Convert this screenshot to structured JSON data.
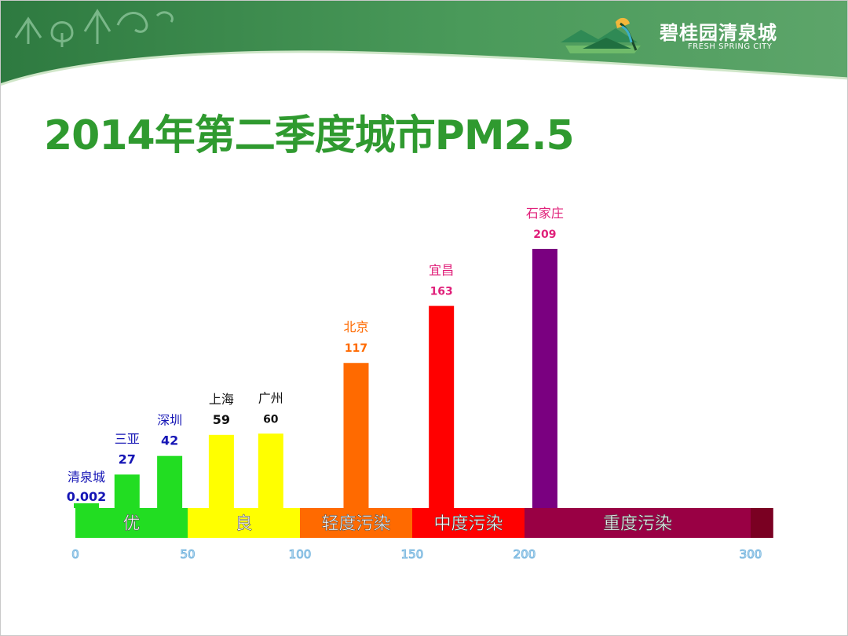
{
  "header": {
    "brand_name": "碧桂园清泉城",
    "brand_subtitle": "FRESH SPRING CITY"
  },
  "title": "2014年第二季度城市PM2.5",
  "colors": {
    "header_green": "#3f8a4e",
    "title_green": "#2f9a2f",
    "axis_tick_color": "#7ab8e0"
  },
  "chart_data": {
    "type": "bar",
    "categories": [
      "清泉城",
      "三亚",
      "深圳",
      "上海",
      "广州",
      "北京",
      "宜昌",
      "石家庄"
    ],
    "values": [
      0.002,
      27,
      42,
      59,
      60,
      117,
      163,
      209
    ],
    "value_labels": [
      "0.002",
      "27",
      "42",
      "59",
      "60",
      "117",
      "163",
      "209"
    ],
    "bar_colors": [
      "#22dd22",
      "#22dd22",
      "#22dd22",
      "#ffff00",
      "#ffff00",
      "#ff6a00",
      "#ff0000",
      "#7a0080"
    ],
    "label_colors": [
      "#1515b5",
      "#1515b5",
      "#1515b5",
      "#111111",
      "#111111",
      "#ff6a00",
      "#e0207a",
      "#e0207a"
    ],
    "x_positions": [
      0.002,
      23,
      42,
      65,
      87,
      125,
      163,
      209
    ],
    "xlim": [
      0,
      300
    ],
    "ylim": [
      0,
      250
    ],
    "x_ticks": [
      "0",
      "50",
      "100",
      "150",
      "200",
      "300"
    ],
    "x_tick_values": [
      0,
      50,
      100,
      150,
      200,
      300
    ],
    "bands": [
      {
        "label": "优",
        "from": 0,
        "to": 50,
        "color": "#22dd22"
      },
      {
        "label": "良",
        "from": 50,
        "to": 100,
        "color": "#ffff00"
      },
      {
        "label": "轻度污染",
        "from": 100,
        "to": 150,
        "color": "#ff6a00"
      },
      {
        "label": "中度污染",
        "from": 150,
        "to": 200,
        "color": "#ff0000"
      },
      {
        "label": "重度污染",
        "from": 200,
        "to": 300,
        "color": "#990044"
      },
      {
        "label": "",
        "from": 300,
        "to": 310,
        "color": "#7a0022"
      }
    ],
    "grid": false
  }
}
